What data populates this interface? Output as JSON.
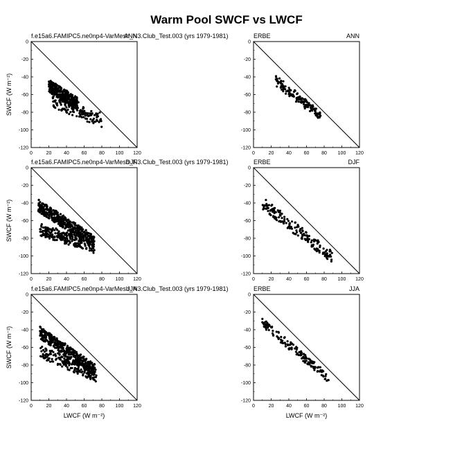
{
  "title": "Warm Pool SWCF vs LWCF",
  "chart_data": {
    "type": "scatter",
    "title": "Warm Pool SWCF vs LWCF",
    "xlabel": "LWCF (W m⁻²)",
    "ylabel": "SWCF (W m⁻²)",
    "xlim": [
      0,
      120
    ],
    "ylim": [
      -120,
      0
    ],
    "xticks": [
      0,
      20,
      40,
      60,
      80,
      100,
      120
    ],
    "yticks": [
      0,
      -20,
      -40,
      -60,
      -80,
      -100,
      -120
    ],
    "reference_line": "y = -x",
    "panels": [
      {
        "id": "model-ann",
        "left_label": "f.e15a6.FAMIPC5.ne0np4-VarMesh_N3.Club_Test.003 (yrs 1979-1981)",
        "right_label": "ANN",
        "show_xlabel": false,
        "clouds": [
          {
            "n": 320,
            "x": [
              20,
              52
            ],
            "r": [
              -30,
              -18
            ],
            "w": 14,
            "yshift": 0
          },
          {
            "n": 150,
            "x": [
              24,
              80
            ],
            "r": [
              -44,
              -12
            ],
            "w": 12,
            "yshift": 6
          }
        ]
      },
      {
        "id": "erbe-ann",
        "left_label": "ERBE",
        "right_label": "ANN",
        "show_xlabel": false,
        "clouds": [
          {
            "n": 150,
            "x": [
              25,
              76
            ],
            "r": [
              -20,
              -9
            ],
            "w": 10,
            "yshift": 2
          }
        ]
      },
      {
        "id": "model-djf",
        "left_label": "f.e15a6.FAMIPC5.ne0np4-VarMesh_N3.Club_Test.003 (yrs 1979-1981)",
        "right_label": "DJF",
        "show_xlabel": false,
        "clouds": [
          {
            "n": 420,
            "x": [
              8,
              72
            ],
            "r": [
              -35,
              -12
            ],
            "w": 14,
            "yshift": 0
          },
          {
            "n": 220,
            "x": [
              10,
              72
            ],
            "r": [
              -60,
              -18
            ],
            "w": 14,
            "yshift": 0
          }
        ]
      },
      {
        "id": "erbe-djf",
        "left_label": "ERBE",
        "right_label": "DJF",
        "show_xlabel": false,
        "clouds": [
          {
            "n": 180,
            "x": [
              10,
              90
            ],
            "r": [
              -30,
              -12
            ],
            "w": 14,
            "yshift": 0
          }
        ]
      },
      {
        "id": "model-jja",
        "left_label": "f.e15a6.FAMIPC5.ne0np4-VarMesh_N3.Club_Test.003 (yrs 1979-1981)",
        "right_label": "JJA",
        "show_xlabel": true,
        "clouds": [
          {
            "n": 380,
            "x": [
              10,
              72
            ],
            "r": [
              -33,
              -14
            ],
            "w": 14,
            "yshift": 0
          },
          {
            "n": 200,
            "x": [
              10,
              74
            ],
            "r": [
              -55,
              -18
            ],
            "w": 14,
            "yshift": 0
          }
        ]
      },
      {
        "id": "erbe-jja",
        "left_label": "ERBE",
        "right_label": "JJA",
        "show_xlabel": true,
        "clouds": [
          {
            "n": 160,
            "x": [
              10,
              85
            ],
            "r": [
              -22,
              -10
            ],
            "w": 10,
            "yshift": 0
          }
        ]
      }
    ]
  }
}
